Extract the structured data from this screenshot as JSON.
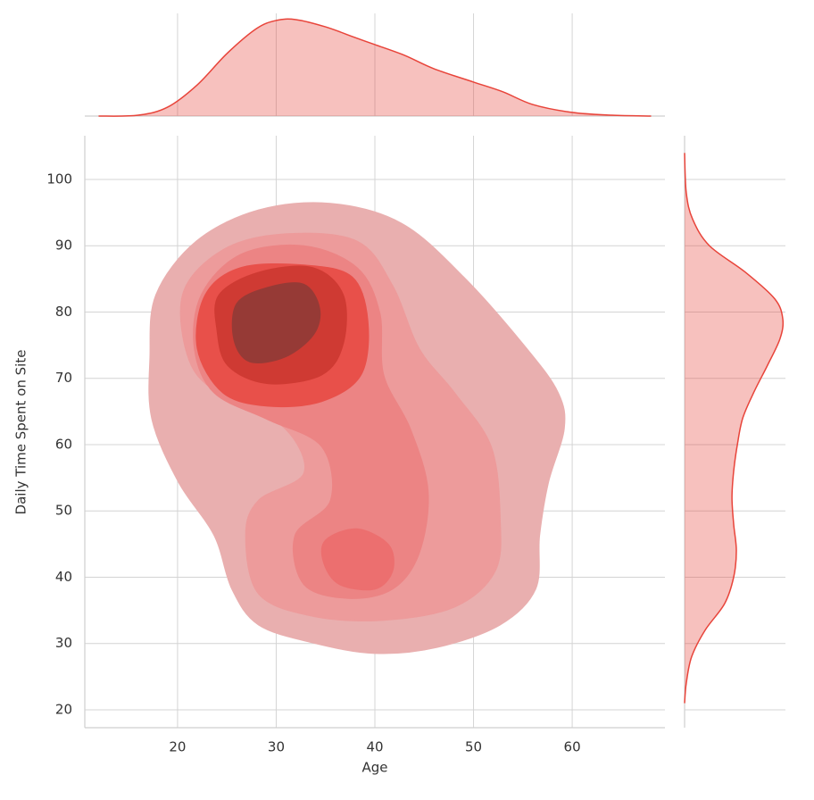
{
  "chart_data": {
    "type": "jointplot",
    "x_label": "Age",
    "y_label": "Daily Time Spent on Site",
    "xlim": [
      10.6,
      69.4
    ],
    "ylim": [
      17.3,
      106.6
    ],
    "xticks": [
      20,
      30,
      40,
      50,
      60
    ],
    "yticks": [
      20,
      30,
      40,
      50,
      60,
      70,
      80,
      90,
      100
    ],
    "grid": true,
    "color": "#e8443a",
    "levels": [
      {
        "color": "#e9afaf",
        "rings": [
          {
            "x": [
              17.8,
              21.9,
              28.2,
              35.5,
              42.7,
              49.0,
              55.4,
              58.6,
              59.2,
              57.6,
              56.7,
              56.3,
              52.7,
              46.3,
              40.0,
              33.7,
              28.2,
              25.5,
              23.7,
              20.1,
              17.4,
              17.2
            ],
            "y": [
              82.6,
              90.7,
              95.4,
              96.4,
              93.4,
              85.3,
              74.5,
              67.8,
              62.4,
              54.3,
              46.3,
              38.2,
              32.8,
              29.4,
              28.5,
              30.1,
              32.8,
              38.2,
              46.3,
              54.3,
              63.8,
              73.2
            ]
          }
        ]
      },
      {
        "color": "#ed9b9b",
        "rings": [
          {
            "x": [
              20.5,
              24.6,
              30.9,
              38.2,
              41.8,
              44.5,
              48.1,
              51.8,
              52.7,
              52.2,
              48.1,
              40.9,
              33.7,
              28.2,
              26.9,
              28.2,
              32.8,
              30.9,
              25.5,
              21.4
            ],
            "y": [
              82.6,
              89.4,
              91.8,
              90.7,
              84.0,
              74.5,
              67.8,
              59.7,
              49.0,
              40.9,
              35.5,
              33.5,
              34.1,
              37.5,
              46.3,
              51.6,
              55.7,
              62.4,
              66.5,
              71.9
            ]
          }
        ]
      },
      {
        "color": "#ec8484",
        "rings": [
          {
            "x": [
              22.4,
              26.4,
              32.8,
              38.2,
              40.5,
              40.9,
              43.6,
              45.4,
              44.5,
              41.8,
              37.3,
              32.8,
              31.9,
              35.5,
              34.6,
              29.1,
              23.7,
              21.7
            ],
            "y": [
              82.6,
              88.7,
              90.0,
              86.7,
              79.9,
              70.5,
              62.4,
              53.0,
              43.6,
              38.2,
              36.8,
              38.9,
              46.3,
              51.6,
              59.7,
              63.8,
              67.8,
              74.5
            ]
          }
        ]
      },
      {
        "color": "#ec6f6f",
        "rings": [
          {
            "x": [
              35.0,
              38.2,
              41.4,
              41.8,
              40.0,
              36.4,
              34.8
            ],
            "y": [
              45.6,
              47.3,
              44.9,
              40.9,
              38.2,
              38.9,
              42.2
            ]
          }
        ]
      },
      {
        "color": "#e8504a",
        "rings": [
          {
            "x": [
              22.8,
              26.4,
              32.8,
              37.7,
              39.3,
              38.6,
              34.6,
              29.1,
              24.6,
              22.0
            ],
            "y": [
              82.6,
              86.7,
              87.1,
              85.3,
              78.6,
              70.5,
              66.5,
              65.8,
              67.8,
              74.5
            ]
          }
        ]
      },
      {
        "color": "#cf3a33",
        "rings": [
          {
            "x": [
              24.2,
              28.2,
              33.7,
              36.8,
              36.8,
              34.6,
              29.1,
              25.1,
              24.0
            ],
            "y": [
              82.6,
              86.0,
              86.7,
              82.6,
              75.2,
              70.5,
              69.2,
              71.9,
              77.2
            ]
          }
        ]
      },
      {
        "color": "#963a36",
        "rings": [
          {
            "x": [
              26.0,
              29.1,
              32.8,
              34.4,
              33.8,
              30.9,
              27.3,
              25.7
            ],
            "y": [
              81.3,
              83.7,
              84.2,
              80.6,
              76.6,
              73.2,
              72.5,
              75.9
            ]
          }
        ]
      }
    ],
    "marginal_x": {
      "x": [
        12,
        16,
        19,
        22,
        25,
        28,
        30,
        32,
        35,
        38,
        40,
        43,
        46,
        50,
        53,
        56,
        60,
        64,
        68
      ],
      "density": [
        0,
        0.0004,
        0.0042,
        0.0146,
        0.0292,
        0.0409,
        0.0447,
        0.0451,
        0.0417,
        0.0367,
        0.0334,
        0.0284,
        0.0221,
        0.0159,
        0.0113,
        0.0054,
        0.0017,
        0.0004,
        0
      ],
      "lim": [
        0,
        0.048
      ]
    },
    "marginal_y": {
      "y": [
        21,
        24,
        28,
        32,
        36,
        40,
        44,
        48,
        52,
        56,
        60,
        64,
        68,
        72,
        76,
        79,
        82,
        86,
        90,
        94,
        98,
        104
      ],
      "density": [
        0,
        0.0005,
        0.0021,
        0.0061,
        0.0119,
        0.0146,
        0.0154,
        0.0146,
        0.0141,
        0.0146,
        0.0157,
        0.0173,
        0.0207,
        0.0247,
        0.0284,
        0.0292,
        0.0268,
        0.0181,
        0.0074,
        0.0024,
        0.0005,
        0
      ],
      "lim": [
        0,
        0.03
      ]
    }
  }
}
